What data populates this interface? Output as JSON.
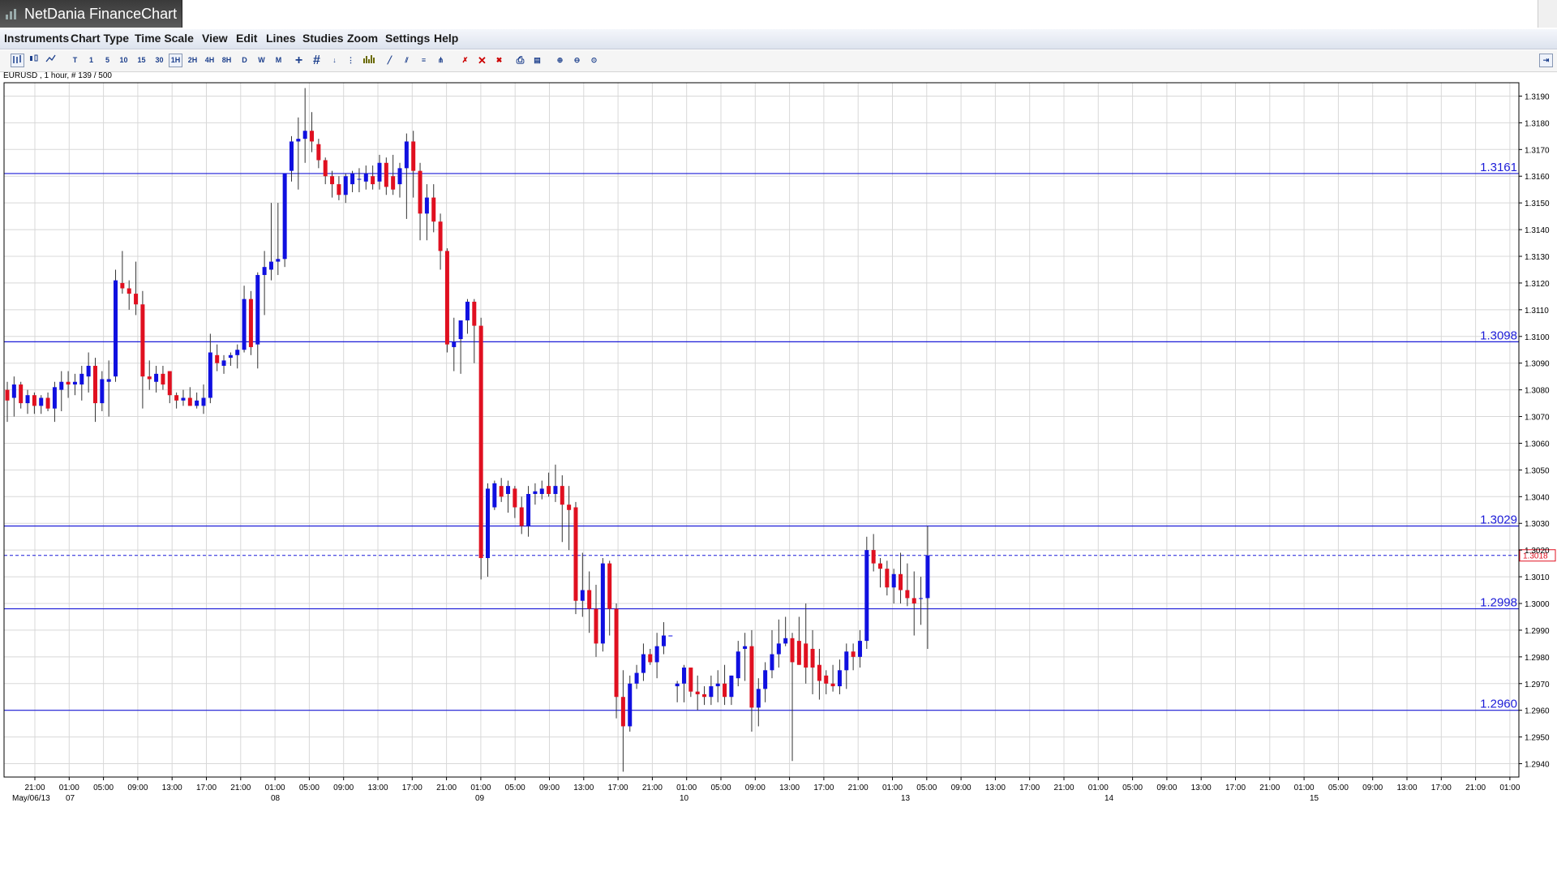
{
  "app": {
    "title": "NetDania FinanceChart"
  },
  "menu": [
    "Instruments",
    "Chart Type",
    "Time Scale",
    "View",
    "Edit",
    "Lines",
    "Studies",
    "Zoom",
    "Settings",
    "Help"
  ],
  "toolbar": {
    "icons": [
      "bar-chart-icon",
      "candle-chart-icon",
      "line-chart-icon"
    ],
    "timescales": [
      "T",
      "1",
      "5",
      "10",
      "15",
      "30",
      "1H",
      "2H",
      "4H",
      "8H",
      "D",
      "W",
      "M"
    ],
    "active_timescale": "1H"
  },
  "symbol_info": "EURUSD , 1 hour, # 139 / 500",
  "colors": {
    "up": "#1010e0",
    "down": "#e01020",
    "hline": "#1c1cd8",
    "grid": "#d8d8d8",
    "price_label_border": "#e01020"
  },
  "chart_data": {
    "type": "candlestick",
    "symbol": "EURUSD",
    "interval": "1 hour",
    "ylim": [
      1.2935,
      1.3195
    ],
    "yticks": [
      "1.2940",
      "1.2950",
      "1.2960",
      "1.2970",
      "1.2980",
      "1.2990",
      "1.3000",
      "1.3010",
      "1.3020",
      "1.3030",
      "1.3040",
      "1.3050",
      "1.3060",
      "1.3070",
      "1.3080",
      "1.3090",
      "1.3100",
      "1.3110",
      "1.3120",
      "1.3130",
      "1.3140",
      "1.3150",
      "1.3160",
      "1.3170",
      "1.3180",
      "1.3190"
    ],
    "xticks": [
      "21:00",
      "01:00",
      "05:00",
      "09:00",
      "13:00",
      "17:00",
      "21:00",
      "01:00",
      "05:00",
      "09:00",
      "13:00",
      "17:00",
      "21:00",
      "01:00",
      "05:00",
      "09:00",
      "13:00",
      "17:00",
      "21:00",
      "01:00",
      "05:00",
      "09:00",
      "13:00",
      "17:00",
      "21:00",
      "01:00",
      "05:00",
      "09:00",
      "13:00",
      "17:00",
      "21:00",
      "01:00",
      "05:00",
      "09:00",
      "13:00",
      "17:00",
      "21:00",
      "01:00",
      "05:00",
      "09:00",
      "13:00",
      "17:00",
      "21:00",
      "01:00",
      "05:00",
      "09:00",
      "13:00",
      "17:00",
      "21:00"
    ],
    "date_labels": [
      "May/06/13",
      "07",
      "08",
      "09",
      "10",
      "13",
      "14",
      "15"
    ],
    "horizontal_lines": [
      "1.3161",
      "1.3098",
      "1.3029",
      "1.2998",
      "1.2960"
    ],
    "current_price": "1.3018",
    "candles": [
      [
        1.308,
        1.3083,
        1.3068,
        1.3076
      ],
      [
        1.3077,
        1.3085,
        1.307,
        1.3082
      ],
      [
        1.3082,
        1.3083,
        1.3073,
        1.3075
      ],
      [
        1.3075,
        1.308,
        1.3071,
        1.3078
      ],
      [
        1.3078,
        1.3079,
        1.3071,
        1.3074
      ],
      [
        1.3074,
        1.3078,
        1.3071,
        1.3077
      ],
      [
        1.3077,
        1.3079,
        1.3072,
        1.3073
      ],
      [
        1.3073,
        1.3083,
        1.3068,
        1.3081
      ],
      [
        1.308,
        1.3087,
        1.3072,
        1.3083
      ],
      [
        1.3083,
        1.3087,
        1.3077,
        1.3082
      ],
      [
        1.3082,
        1.3086,
        1.3078,
        1.3083
      ],
      [
        1.3082,
        1.3089,
        1.3076,
        1.3086
      ],
      [
        1.3085,
        1.3094,
        1.3079,
        1.3089
      ],
      [
        1.3089,
        1.3092,
        1.3068,
        1.3075
      ],
      [
        1.3075,
        1.3087,
        1.3072,
        1.3084
      ],
      [
        1.3083,
        1.3091,
        1.307,
        1.3084
      ],
      [
        1.3085,
        1.3125,
        1.3083,
        1.3121
      ],
      [
        1.312,
        1.3132,
        1.3116,
        1.3118
      ],
      [
        1.3118,
        1.3121,
        1.311,
        1.3116
      ],
      [
        1.3116,
        1.3128,
        1.3108,
        1.3112
      ],
      [
        1.3112,
        1.3117,
        1.3073,
        1.3085
      ],
      [
        1.3085,
        1.3091,
        1.308,
        1.3084
      ],
      [
        1.3083,
        1.3089,
        1.3079,
        1.3086
      ],
      [
        1.3086,
        1.3089,
        1.308,
        1.3082
      ],
      [
        1.3087,
        1.3087,
        1.3075,
        1.3078
      ],
      [
        1.3078,
        1.3079,
        1.3073,
        1.3076
      ],
      [
        1.3076,
        1.308,
        1.3074,
        1.3077
      ],
      [
        1.3077,
        1.3081,
        1.3074,
        1.3074
      ],
      [
        1.3074,
        1.3079,
        1.3073,
        1.3076
      ],
      [
        1.3074,
        1.3082,
        1.3071,
        1.3077
      ],
      [
        1.3077,
        1.3101,
        1.3075,
        1.3094
      ],
      [
        1.3093,
        1.3097,
        1.3087,
        1.309
      ],
      [
        1.3089,
        1.3093,
        1.3086,
        1.3091
      ],
      [
        1.3092,
        1.3094,
        1.3089,
        1.3093
      ],
      [
        1.3093,
        1.3097,
        1.3088,
        1.3095
      ],
      [
        1.3095,
        1.3119,
        1.3094,
        1.3114
      ],
      [
        1.3114,
        1.3117,
        1.3093,
        1.3096
      ],
      [
        1.3097,
        1.3124,
        1.3088,
        1.3123
      ],
      [
        1.3123,
        1.3132,
        1.3108,
        1.3126
      ],
      [
        1.3125,
        1.315,
        1.3121,
        1.3128
      ],
      [
        1.3128,
        1.315,
        1.3123,
        1.3129
      ],
      [
        1.3129,
        1.316,
        1.3126,
        1.3161
      ],
      [
        1.3162,
        1.3175,
        1.3158,
        1.3173
      ],
      [
        1.3173,
        1.3182,
        1.3155,
        1.3174
      ],
      [
        1.3174,
        1.3193,
        1.3165,
        1.3177
      ],
      [
        1.3177,
        1.3184,
        1.3169,
        1.3173
      ],
      [
        1.3172,
        1.3174,
        1.3163,
        1.3166
      ],
      [
        1.3166,
        1.3167,
        1.3157,
        1.316
      ],
      [
        1.316,
        1.3162,
        1.3152,
        1.3157
      ],
      [
        1.3157,
        1.316,
        1.3151,
        1.3153
      ],
      [
        1.3153,
        1.3161,
        1.315,
        1.316
      ],
      [
        1.3157,
        1.3162,
        1.3154,
        1.3161
      ],
      [
        1.3159,
        1.3163,
        1.3154,
        1.3159
      ],
      [
        1.3158,
        1.3164,
        1.3155,
        1.3161
      ],
      [
        1.316,
        1.3164,
        1.3155,
        1.3157
      ],
      [
        1.3158,
        1.3168,
        1.3155,
        1.3165
      ],
      [
        1.3165,
        1.3167,
        1.3153,
        1.3156
      ],
      [
        1.316,
        1.3168,
        1.3153,
        1.3155
      ],
      [
        1.3157,
        1.3165,
        1.3152,
        1.3163
      ],
      [
        1.3163,
        1.3176,
        1.3144,
        1.3173
      ],
      [
        1.3173,
        1.3177,
        1.3152,
        1.3162
      ],
      [
        1.3162,
        1.3165,
        1.3136,
        1.3146
      ],
      [
        1.3146,
        1.3157,
        1.3136,
        1.3152
      ],
      [
        1.3152,
        1.3157,
        1.3139,
        1.3143
      ],
      [
        1.3143,
        1.3146,
        1.3125,
        1.3132
      ],
      [
        1.3132,
        1.3133,
        1.3094,
        1.3097
      ],
      [
        1.3096,
        1.3107,
        1.3087,
        1.3098
      ],
      [
        1.3099,
        1.3105,
        1.3086,
        1.3106
      ],
      [
        1.3106,
        1.3114,
        1.3101,
        1.3113
      ],
      [
        1.3113,
        1.3114,
        1.309,
        1.3104
      ],
      [
        1.3104,
        1.3107,
        1.3009,
        1.3017
      ],
      [
        1.3017,
        1.3045,
        1.301,
        1.3043
      ],
      [
        1.3036,
        1.3046,
        1.3035,
        1.3045
      ],
      [
        1.3044,
        1.3047,
        1.3038,
        1.304
      ],
      [
        1.3041,
        1.3046,
        1.3034,
        1.3044
      ],
      [
        1.3043,
        1.3044,
        1.3032,
        1.3036
      ],
      [
        1.3036,
        1.304,
        1.3026,
        1.3029
      ],
      [
        1.3029,
        1.3044,
        1.3025,
        1.3041
      ],
      [
        1.3041,
        1.3045,
        1.3037,
        1.3042
      ],
      [
        1.3041,
        1.3046,
        1.3039,
        1.3043
      ],
      [
        1.3044,
        1.3049,
        1.304,
        1.3041
      ],
      [
        1.3041,
        1.3052,
        1.3038,
        1.3044
      ],
      [
        1.3044,
        1.3048,
        1.3023,
        1.3037
      ],
      [
        1.3037,
        1.3044,
        1.302,
        1.3035
      ],
      [
        1.3036,
        1.3038,
        1.2996,
        1.3001
      ],
      [
        1.3001,
        1.3019,
        1.2995,
        1.3005
      ],
      [
        1.3005,
        1.3012,
        1.2989,
        1.2998
      ],
      [
        1.2998,
        1.3007,
        1.298,
        1.2985
      ],
      [
        1.2985,
        1.3017,
        1.2982,
        1.3015
      ],
      [
        1.3015,
        1.3016,
        1.2988,
        1.2998
      ],
      [
        1.2998,
        1.3,
        1.2957,
        1.2965
      ],
      [
        1.2965,
        1.2975,
        1.2937,
        1.2954
      ],
      [
        1.2954,
        1.2973,
        1.2952,
        1.297
      ],
      [
        1.297,
        1.2977,
        1.2968,
        1.2974
      ],
      [
        1.2974,
        1.2985,
        1.2971,
        1.2981
      ],
      [
        1.2981,
        1.2983,
        1.2977,
        1.2978
      ],
      [
        1.2978,
        1.2989,
        1.2972,
        1.2984
      ],
      [
        1.2984,
        1.2993,
        1.2981,
        1.2988
      ],
      [
        1.2988,
        1.2988,
        1.2988,
        1.2988
      ],
      [
        1.2969,
        1.2971,
        1.2963,
        1.297
      ],
      [
        1.297,
        1.2977,
        1.2963,
        1.2976
      ],
      [
        1.2976,
        1.2976,
        1.2965,
        1.2967
      ],
      [
        1.2967,
        1.2973,
        1.296,
        1.2966
      ],
      [
        1.2966,
        1.2969,
        1.2962,
        1.2965
      ],
      [
        1.2965,
        1.2973,
        1.2962,
        1.2969
      ],
      [
        1.2969,
        1.2975,
        1.2963,
        1.297
      ],
      [
        1.297,
        1.2977,
        1.2962,
        1.2965
      ],
      [
        1.2965,
        1.2973,
        1.2962,
        1.2973
      ],
      [
        1.2972,
        1.2986,
        1.2969,
        1.2982
      ],
      [
        1.2983,
        1.2989,
        1.2971,
        1.2984
      ],
      [
        1.2984,
        1.299,
        1.2952,
        1.2961
      ],
      [
        1.2961,
        1.2972,
        1.2954,
        1.2968
      ],
      [
        1.2968,
        1.2978,
        1.2963,
        1.2975
      ],
      [
        1.2975,
        1.299,
        1.2972,
        1.2981
      ],
      [
        1.2981,
        1.2994,
        1.2976,
        1.2985
      ],
      [
        1.2985,
        1.2995,
        1.2984,
        1.2987
      ],
      [
        1.2987,
        1.2989,
        1.2941,
        1.2978
      ],
      [
        1.2986,
        1.2995,
        1.2977,
        1.2977
      ],
      [
        1.2985,
        1.3,
        1.297,
        1.2976
      ],
      [
        1.2983,
        1.299,
        1.2966,
        1.2976
      ],
      [
        1.2977,
        1.2983,
        1.2964,
        1.2971
      ],
      [
        1.2973,
        1.2975,
        1.2966,
        1.297
      ],
      [
        1.297,
        1.2977,
        1.2967,
        1.2969
      ],
      [
        1.2969,
        1.2979,
        1.2966,
        1.2975
      ],
      [
        1.2975,
        1.2985,
        1.2968,
        1.2982
      ],
      [
        1.2982,
        1.2985,
        1.2975,
        1.298
      ],
      [
        1.298,
        1.299,
        1.2976,
        1.2986
      ],
      [
        1.2986,
        1.3025,
        1.2983,
        1.302
      ],
      [
        1.302,
        1.3026,
        1.3012,
        1.3015
      ],
      [
        1.3015,
        1.3017,
        1.3006,
        1.3013
      ],
      [
        1.3013,
        1.3016,
        1.3003,
        1.3006
      ],
      [
        1.3006,
        1.3013,
        1.3,
        1.3011
      ],
      [
        1.3011,
        1.3019,
        1.3,
        1.3005
      ],
      [
        1.3005,
        1.3015,
        1.2999,
        1.3002
      ],
      [
        1.3002,
        1.3012,
        1.2988,
        1.3
      ],
      [
        1.3002,
        1.301,
        1.2992,
        1.3002
      ],
      [
        1.3002,
        1.3029,
        1.2983,
        1.3018
      ]
    ]
  }
}
